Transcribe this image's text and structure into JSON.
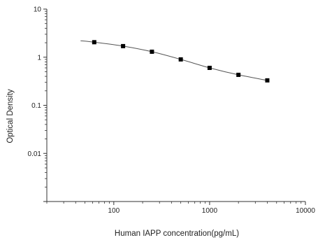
{
  "chart_data": {
    "type": "scatter",
    "title": "",
    "xlabel": "Human IAPP concentration(pg/mL)",
    "ylabel": "Optical Density",
    "xscale": "log",
    "yscale": "log",
    "xlim": [
      20,
      10000
    ],
    "ylim": [
      0.001,
      10
    ],
    "grid": false,
    "legend": "none",
    "x_ticks": [
      {
        "value": 100,
        "label": "100"
      },
      {
        "value": 1000,
        "label": "1000"
      },
      {
        "value": 10000,
        "label": "10000"
      }
    ],
    "y_ticks": [
      {
        "value": 10,
        "label": "10"
      },
      {
        "value": 1,
        "label": "1"
      },
      {
        "value": 0.1,
        "label": "0.1"
      },
      {
        "value": 0.01,
        "label": "0.01"
      }
    ],
    "series": [
      {
        "type": "scatter",
        "marker": "square",
        "x": [
          62.5,
          125,
          250,
          500,
          1000,
          2000,
          4000
        ],
        "y": [
          2.05,
          1.7,
          1.3,
          0.9,
          0.6,
          0.43,
          0.33
        ]
      }
    ],
    "fit_curve": {
      "type": "line",
      "x": [
        45,
        62.5,
        125,
        250,
        500,
        1000,
        2000,
        4000
      ],
      "y": [
        2.2,
        2.05,
        1.7,
        1.3,
        0.9,
        0.6,
        0.43,
        0.33
      ]
    },
    "colors": {
      "axis": "#333333",
      "points": "#000000",
      "curve": "#555555"
    }
  }
}
